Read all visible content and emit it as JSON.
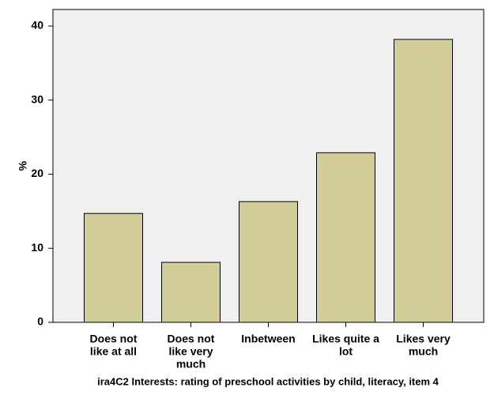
{
  "chart_data": {
    "type": "bar",
    "x_label": "ira4C2 Interests: rating of preschool activities by child, literacy, item 4",
    "y_label": "%",
    "categories": [
      [
        "Does not",
        "like at all"
      ],
      [
        "Does not",
        "like very",
        "much"
      ],
      [
        "Inbetween"
      ],
      [
        "Likes quite a",
        "lot"
      ],
      [
        "Likes very",
        "much"
      ]
    ],
    "values": [
      14.7,
      8.1,
      16.3,
      22.9,
      38.2
    ],
    "color": "#d3ce97",
    "ylim": [
      0,
      42.24
    ],
    "yticks": [
      0,
      10,
      20,
      30,
      40
    ],
    "grid": false
  }
}
